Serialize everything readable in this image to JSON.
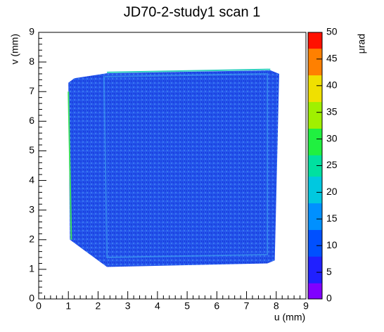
{
  "chart_data": {
    "type": "heatmap",
    "title": "JD70-2-study1 scan 1",
    "x_label": "u (mm)",
    "y_label": "v (mm)",
    "colorbar_label": "μrad",
    "xlim": [
      0,
      9
    ],
    "xticks": [
      0,
      1,
      2,
      3,
      4,
      5,
      6,
      7,
      8,
      9
    ],
    "ylim": [
      0,
      9
    ],
    "yticks": [
      0,
      1,
      2,
      3,
      4,
      5,
      6,
      7,
      8,
      9
    ],
    "zlim": [
      0,
      50
    ],
    "zticks": [
      0,
      5,
      10,
      15,
      20,
      25,
      30,
      35,
      40,
      45,
      50
    ],
    "colormap": [
      "#8000ff",
      "#2020ff",
      "#0050ff",
      "#0090ff",
      "#00c8e0",
      "#00e0a0",
      "#20f040",
      "#a0f000",
      "#f0e000",
      "#ff8000",
      "#ff1000"
    ]
  }
}
